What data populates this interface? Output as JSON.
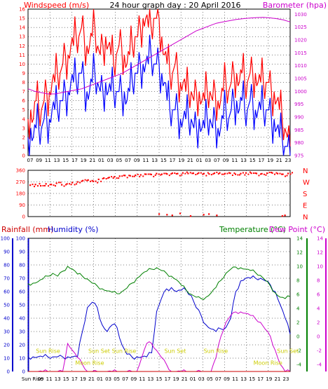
{
  "title": "24 hour graph day : 20 April 2016",
  "colors": {
    "wind_speed": "#ff0000",
    "wind_avg": "#0000ff",
    "barometer": "#cc00cc",
    "wind_dir": "#ff0000",
    "rainfall": "#cc0000",
    "humidity": "#0000cc",
    "temperature": "#008000",
    "dew_point": "#cc00cc",
    "sun_moon": "#cccc00",
    "grid": "#000000"
  },
  "chart_data": [
    {
      "type": "line",
      "panel": "wind",
      "left_label": "Windspeed (m/s)",
      "right_label": "Barometer (hpa)",
      "x_ticks": [
        "07",
        "09",
        "11",
        "13",
        "15",
        "17",
        "19",
        "21",
        "01",
        "03",
        "05",
        "07",
        "09",
        "11",
        "13",
        "15",
        "17",
        "19",
        "21",
        "01",
        "03",
        "07",
        "09",
        "11",
        "13",
        "15",
        "17",
        "19",
        "21",
        "23"
      ],
      "y_left_ticks": [
        "0",
        "1",
        "2",
        "3",
        "4",
        "5",
        "6",
        "7",
        "8",
        "9",
        "10",
        "11",
        "12",
        "13",
        "14",
        "15",
        "16"
      ],
      "y_right_ticks": [
        "975",
        "980",
        "985",
        "990",
        "995",
        "1000",
        "1005",
        "1010",
        "1015",
        "1020",
        "1025",
        "1030"
      ],
      "ylim_left": [
        0,
        16
      ],
      "ylim_right": [
        975,
        1032
      ],
      "series": [
        {
          "name": "Windspeed (m/s)",
          "axis": "left",
          "color": "#ff0000",
          "values": [
            4,
            5,
            4,
            6,
            5,
            5,
            6,
            7,
            7,
            8,
            8,
            9,
            9,
            10,
            11,
            11,
            12,
            12,
            13,
            13,
            14,
            13,
            12,
            12,
            13,
            14,
            12,
            11,
            12,
            13,
            12,
            11,
            10,
            11,
            12,
            12,
            11,
            10,
            11,
            12,
            13,
            13,
            14,
            15,
            15,
            14,
            14,
            15,
            15,
            15,
            13,
            11,
            10,
            9,
            9,
            10,
            9,
            8,
            8,
            7,
            7,
            7,
            6,
            7,
            7,
            6,
            6,
            7,
            7,
            6,
            7,
            6,
            6,
            7,
            8,
            7,
            8,
            9,
            9,
            8,
            9,
            8,
            8,
            9,
            9,
            9,
            8,
            8,
            8,
            8,
            8,
            7,
            7,
            6,
            5,
            4,
            3,
            2,
            1
          ]
        },
        {
          "name": "Wind average",
          "axis": "left",
          "color": "#0000ff",
          "values": [
            2,
            3,
            2,
            3,
            3,
            3,
            4,
            4,
            4,
            5,
            5,
            5,
            6,
            6,
            7,
            7,
            8,
            8,
            8,
            9,
            9,
            8,
            7,
            7,
            8,
            9,
            8,
            7,
            7,
            8,
            7,
            7,
            7,
            7,
            7,
            7,
            7,
            6,
            7,
            8,
            9,
            9,
            10,
            10,
            10,
            10,
            11,
            10,
            10,
            10,
            9,
            8,
            6,
            5,
            5,
            5,
            5,
            4,
            4,
            4,
            4,
            4,
            3,
            3,
            4,
            3,
            3,
            4,
            4,
            3,
            4,
            3,
            3,
            4,
            5,
            4,
            5,
            6,
            6,
            5,
            6,
            5,
            5,
            6,
            6,
            5,
            5,
            5,
            5,
            5,
            5,
            4,
            4,
            3,
            2,
            2,
            1,
            1,
            0
          ]
        },
        {
          "name": "Barometer (hpa)",
          "axis": "right",
          "color": "#cc00cc",
          "values": [
            1001,
            1000,
            999.5,
            999,
            999,
            999.5,
            1000,
            1000.5,
            1001,
            1002,
            1003,
            1004,
            1005,
            1006,
            1007,
            1008.5,
            1010,
            1011.5,
            1013,
            1014.5,
            1016,
            1017.5,
            1019,
            1020.5,
            1022,
            1023.5,
            1024.5,
            1025.5,
            1026.5,
            1027,
            1027.5,
            1028,
            1028.3,
            1028.5,
            1028.7,
            1028.8,
            1028.6,
            1028.3,
            1027.8,
            1027
          ]
        }
      ]
    },
    {
      "type": "scatter",
      "panel": "wind_direction",
      "y_left_ticks": [
        "360",
        "270",
        "180",
        "90",
        "0"
      ],
      "y_right_ticks": [
        "N",
        "W",
        "S",
        "E",
        "N"
      ],
      "ylim": [
        0,
        360
      ],
      "series": [
        {
          "name": "Wind direction",
          "color": "#ff0000",
          "values": [
            245,
            250,
            240,
            255,
            250,
            260,
            248,
            255,
            265,
            270,
            280,
            285,
            275,
            290,
            300,
            305,
            310,
            315,
            320,
            318,
            322,
            325,
            330,
            328,
            335,
            330,
            332,
            338,
            335,
            340,
            336,
            338,
            340,
            335,
            332,
            338,
            340,
            335,
            338,
            330,
            335,
            340,
            338,
            336,
            334,
            338,
            340,
            335,
            330,
            336
          ]
        },
        {
          "name": "Wind direction (low)",
          "color": "#ff0000",
          "values": [
            20,
            15,
            10,
            25,
            5,
            15,
            20,
            10,
            5,
            10
          ]
        }
      ]
    },
    {
      "type": "line",
      "panel": "rain_humidity_temp",
      "labels": {
        "rainfall": "Rainfall (mm)",
        "humidity": "Humidity (%)",
        "temperature": "Temperature (°C)",
        "dew_point": "Dew Point (°C)"
      },
      "x_ticks": [
        "Sun Rise",
        "09",
        "11",
        "13",
        "15",
        "17",
        "19",
        "21",
        "01",
        "03",
        "05",
        "07",
        "09",
        "11",
        "13",
        "15",
        "17",
        "19",
        "21",
        "01",
        "03",
        "05",
        "07",
        "09",
        "11",
        "13",
        "15",
        "17",
        "19",
        "21",
        "23"
      ],
      "y_left_ticks": [
        "0",
        "10",
        "20",
        "30",
        "40",
        "50",
        "60",
        "70",
        "80",
        "90",
        "100"
      ],
      "y_right_ticks": [
        "-4",
        "-2",
        "0",
        "2",
        "4",
        "6",
        "8",
        "10",
        "12",
        "14"
      ],
      "ylim_left": [
        0,
        100
      ],
      "ylim_right": [
        -5,
        14
      ],
      "annotations": [
        "Sun Rise",
        "Sun Set",
        "Sun Rise",
        "Moon Rise",
        "Sun Set",
        "Sun Rise",
        "Moon Rise",
        "Sun Set"
      ],
      "series": [
        {
          "name": "Humidity (%)",
          "axis": "left",
          "color": "#0000cc",
          "values": [
            11,
            11,
            11,
            11,
            11,
            11,
            11,
            11,
            11,
            11,
            11,
            30,
            48,
            52,
            48,
            35,
            30,
            35,
            33,
            20,
            13,
            11,
            11,
            11,
            11,
            14,
            45,
            55,
            62,
            63,
            60,
            61,
            61,
            57,
            48,
            42,
            35,
            32,
            30,
            32,
            33,
            40,
            60,
            68,
            70,
            70,
            70,
            70,
            68,
            65,
            60,
            50,
            40,
            28
          ]
        },
        {
          "name": "Temperature (°C)",
          "axis": "right",
          "color": "#008000",
          "values": [
            7.5,
            7.6,
            7.8,
            8.2,
            8.6,
            9.0,
            8.6,
            9.3,
            10.0,
            9.6,
            8.9,
            8.6,
            8.2,
            7.6,
            7.2,
            6.8,
            6.5,
            6.3,
            6.1,
            6.4,
            6.9,
            7.6,
            8.3,
            8.9,
            9.3,
            9.6,
            9.8,
            9.4,
            9.0,
            8.6,
            8.1,
            7.3,
            6.6,
            6.0,
            5.6,
            5.4,
            5.6,
            6.2,
            7.0,
            8.0,
            9.0,
            9.6,
            9.9,
            9.8,
            9.6,
            9.4,
            9.1,
            8.7,
            8.0,
            7.2,
            6.2,
            5.6,
            5.4,
            5.7
          ]
        },
        {
          "name": "Dew Point (°C)",
          "axis": "right",
          "color": "#cc00cc",
          "values": [
            -5,
            -5,
            -5,
            -5,
            -5,
            -5,
            -5,
            -5,
            -1,
            -2,
            -3,
            -4,
            -5,
            -5,
            -5,
            -5,
            -5,
            -5,
            -5,
            -5,
            -5,
            -5,
            -5,
            -3,
            -1,
            -1,
            -2,
            -3,
            -4,
            -5,
            -5,
            -5,
            -5,
            -5,
            -5,
            -5,
            -5,
            -5,
            -3,
            0,
            2,
            3,
            3.5,
            3.5,
            3.3,
            3,
            2.5,
            2,
            1,
            0,
            -2,
            -4,
            -5,
            -5
          ]
        },
        {
          "name": "Rainfall (mm)",
          "axis": "left",
          "color": "#cc0000",
          "values": [
            0,
            0,
            0,
            0,
            0,
            0,
            0,
            0,
            0,
            0,
            0,
            0,
            0,
            0,
            0,
            0,
            0,
            0,
            0,
            0,
            0,
            0,
            0,
            0,
            0,
            0,
            0,
            0,
            0,
            0,
            0,
            0,
            0,
            0,
            0,
            0,
            0,
            0,
            0,
            0,
            0,
            0,
            0,
            0,
            0,
            0,
            0,
            0,
            0,
            0,
            0,
            0,
            0,
            0
          ]
        }
      ]
    }
  ]
}
